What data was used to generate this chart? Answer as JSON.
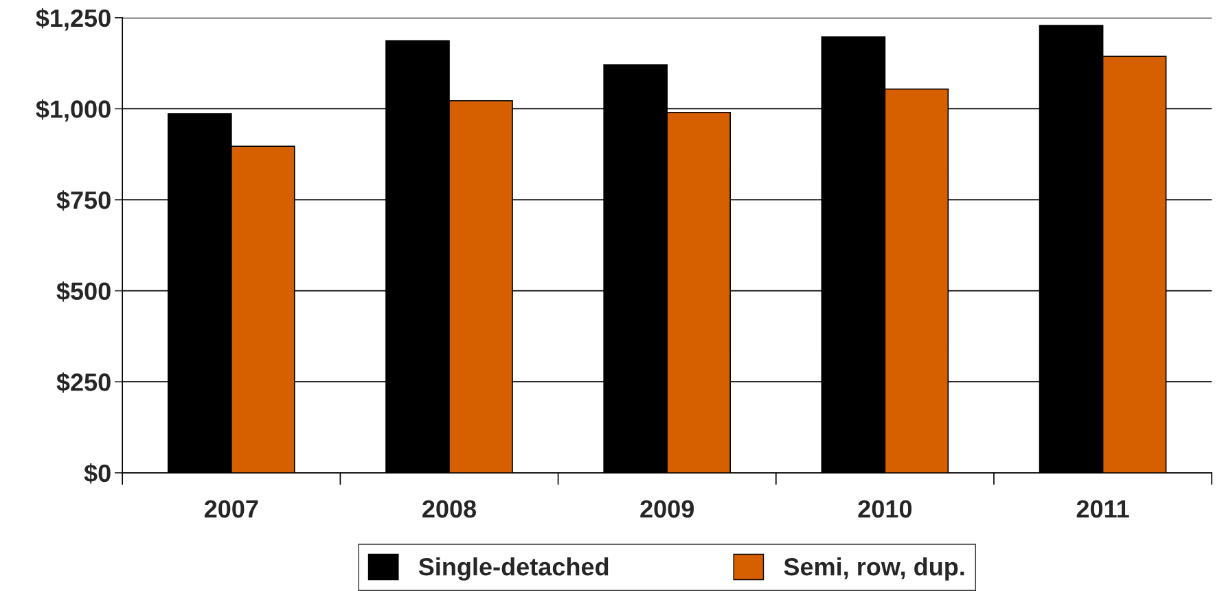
{
  "chart_data": {
    "type": "bar",
    "categories": [
      "2007",
      "2008",
      "2009",
      "2010",
      "2011"
    ],
    "series": [
      {
        "name": "Single-detached",
        "color": "#000000",
        "values": [
          986,
          1187,
          1121,
          1197,
          1229
        ]
      },
      {
        "name": "Semi, row, dup.",
        "color": "#d65f00",
        "values": [
          897,
          1022,
          990,
          1054,
          1144
        ]
      }
    ],
    "ylim": [
      0,
      1250
    ],
    "yticks": [
      {
        "value": 0,
        "label": "$0"
      },
      {
        "value": 250,
        "label": "$250"
      },
      {
        "value": 500,
        "label": "$500"
      },
      {
        "value": 750,
        "label": "$750"
      },
      {
        "value": 1000,
        "label": "$1,000"
      },
      {
        "value": 1250,
        "label": "$1,250"
      }
    ],
    "grid": "y",
    "legend": "bottom"
  }
}
